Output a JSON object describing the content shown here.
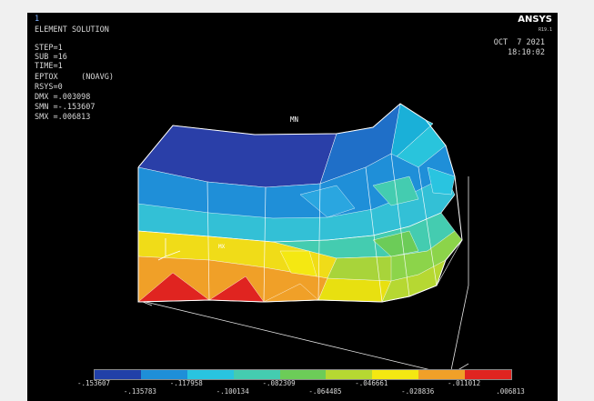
{
  "header": {
    "window_number": "1",
    "title": "ELEMENT SOLUTION",
    "info_lines": [
      "STEP=1",
      "SUB =16",
      "TIME=1",
      "EPTOX     (NOAVG)",
      "RSYS=0",
      "DMX =.003098",
      "SMN =-.153607",
      "SMX =.006813"
    ],
    "brand": "ANSYS",
    "version": "R19.1",
    "date": "OCT  7 2021",
    "time": "18:10:02"
  },
  "model": {
    "mn_label": "MN",
    "mx_label": "MX"
  },
  "legend": {
    "colors": [
      "#2140a8",
      "#1e8fd8",
      "#29c4e0",
      "#44ccb0",
      "#6ccc58",
      "#b6d832",
      "#f4e812",
      "#f0a028",
      "#e02420"
    ],
    "upper_labels": [
      "-.153607",
      "-.117958",
      "-.082309",
      "-.046661",
      "-.011012"
    ],
    "lower_labels": [
      "-.135783",
      "-.100134",
      "-.064485",
      "-.028836",
      ".006813"
    ]
  }
}
